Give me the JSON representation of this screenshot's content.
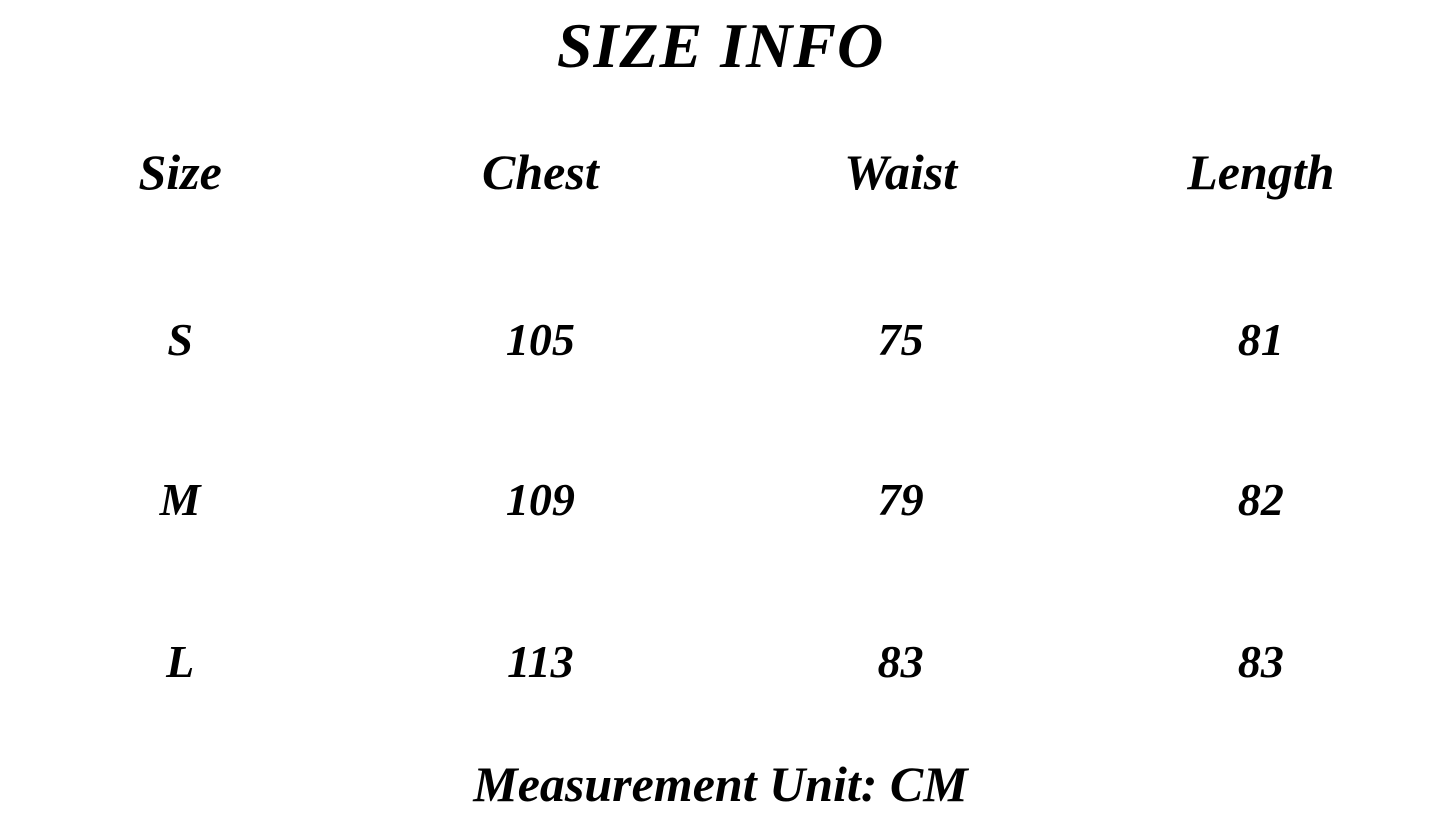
{
  "title": "SIZE INFO",
  "table": {
    "headers": [
      "Size",
      "Chest",
      "Waist",
      "Length"
    ],
    "rows": [
      {
        "size": "S",
        "chest": "105",
        "waist": "75",
        "length": "81"
      },
      {
        "size": "M",
        "chest": "109",
        "waist": "79",
        "length": "82"
      },
      {
        "size": "L",
        "chest": "113",
        "waist": "83",
        "length": "83"
      }
    ]
  },
  "footer": {
    "note": "Measurement Unit: CM"
  },
  "colors": {
    "text": "#000000",
    "background": "#ffffff"
  },
  "chart_data": {
    "type": "table",
    "title": "SIZE INFO",
    "columns": [
      "Size",
      "Chest",
      "Waist",
      "Length"
    ],
    "rows": [
      [
        "S",
        105,
        75,
        81
      ],
      [
        "M",
        109,
        79,
        82
      ],
      [
        "L",
        113,
        83,
        83
      ]
    ],
    "unit": "CM",
    "note": "Measurement Unit: CM"
  }
}
